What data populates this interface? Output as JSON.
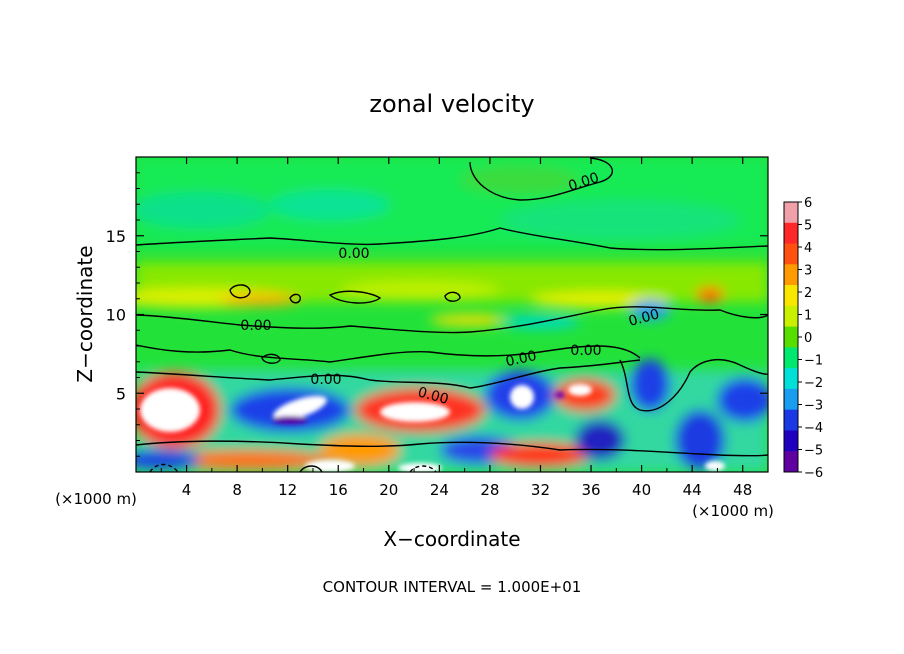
{
  "chart_data": {
    "type": "heatmap",
    "title": "zonal velocity",
    "xlabel": "X−coordinate",
    "ylabel": "Z−coordinate",
    "x_unit_label": "(×1000 m)",
    "footer": "CONTOUR INTERVAL = 1.000E+01",
    "xlim": [
      0,
      50
    ],
    "ylim": [
      0,
      20
    ],
    "x_ticks": [
      "4",
      "8",
      "12",
      "16",
      "20",
      "24",
      "28",
      "32",
      "36",
      "40",
      "44",
      "48"
    ],
    "y_ticks": [
      "5",
      "10",
      "15"
    ],
    "colorbar": {
      "range": [
        -6,
        6
      ],
      "labels": [
        "6",
        "5",
        "4",
        "3",
        "2",
        "1",
        "0",
        "−1",
        "−2",
        "−3",
        "−4",
        "−5",
        "−6"
      ],
      "colors": [
        "#f0a0a8",
        "#ff2828",
        "#ff5010",
        "#ff9a00",
        "#f8e600",
        "#c8f000",
        "#58dd00",
        "#00e870",
        "#00e0d8",
        "#1a9cf0",
        "#1a38e6",
        "#2000c0",
        "#6000a0"
      ]
    },
    "contour_label": "0.00",
    "contour_labels": [
      "0.00",
      "0.00",
      "0.00",
      "0.00",
      "0.00",
      "0.00",
      "0.00",
      "0.00"
    ],
    "description_bands": [
      {
        "z_range": [
          15,
          20
        ],
        "value": 0.0
      },
      {
        "z_range": [
          11,
          14
        ],
        "value": 1.0
      },
      {
        "z_range": [
          7,
          11
        ],
        "value": 0.5
      },
      {
        "z_range": [
          0,
          7
        ],
        "value_range": [
          -6,
          6
        ]
      }
    ]
  }
}
